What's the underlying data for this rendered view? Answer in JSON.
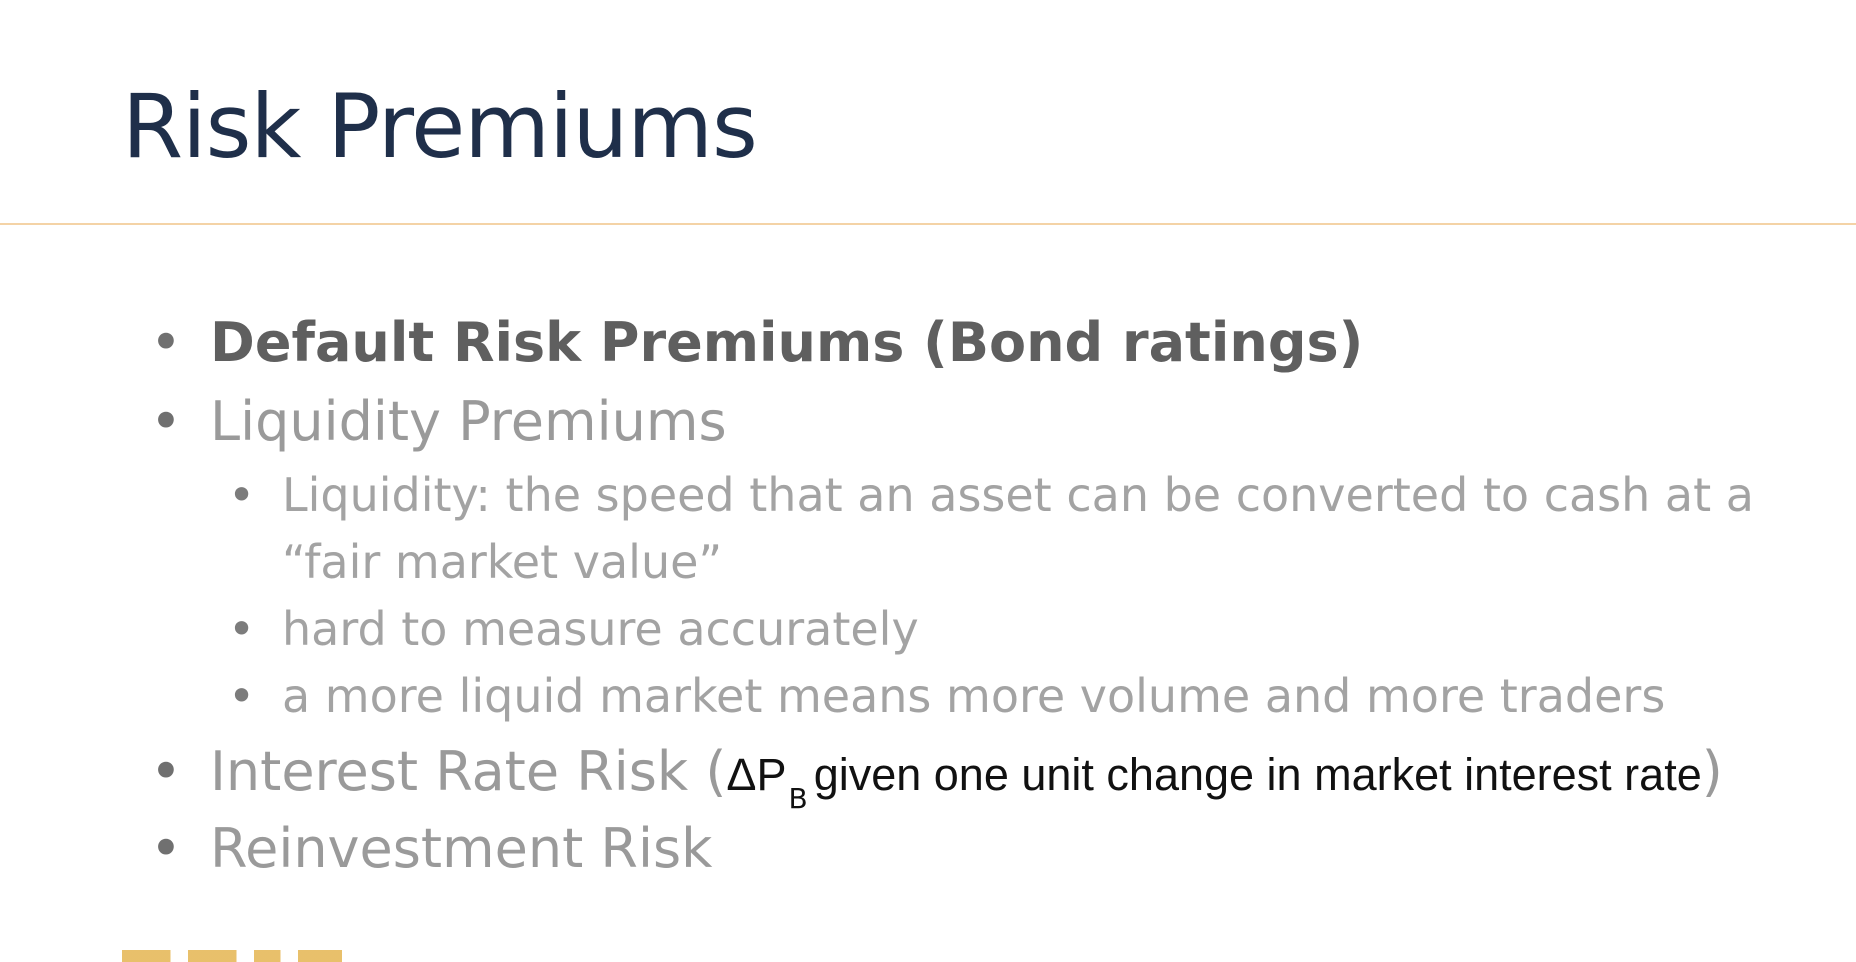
{
  "slide": {
    "title": "Risk Premiums",
    "bullets": [
      {
        "text": "Default Risk Premiums (Bond ratings)",
        "bold": true
      },
      {
        "text": "Liquidity Premiums",
        "sub_bullets": [
          "Liquidity: the speed that an asset can be converted to cash at a “fair market value”",
          "hard to measure accurately",
          "a more liquid market means more volume and more traders"
        ]
      },
      {
        "prefix": "Interest Rate Risk (",
        "delta_symbol": "ΔP",
        "subscript": "B",
        "inline_text": "given one unit change in market interest rate",
        "suffix": ")"
      },
      {
        "text": "Reinvestment Risk"
      }
    ]
  },
  "colors": {
    "title": "#1f2f4a",
    "divider": "#f4d3a6",
    "body_text": "#9a9a9a",
    "bold_text": "#5f5f5f",
    "inline_text": "#111111"
  }
}
